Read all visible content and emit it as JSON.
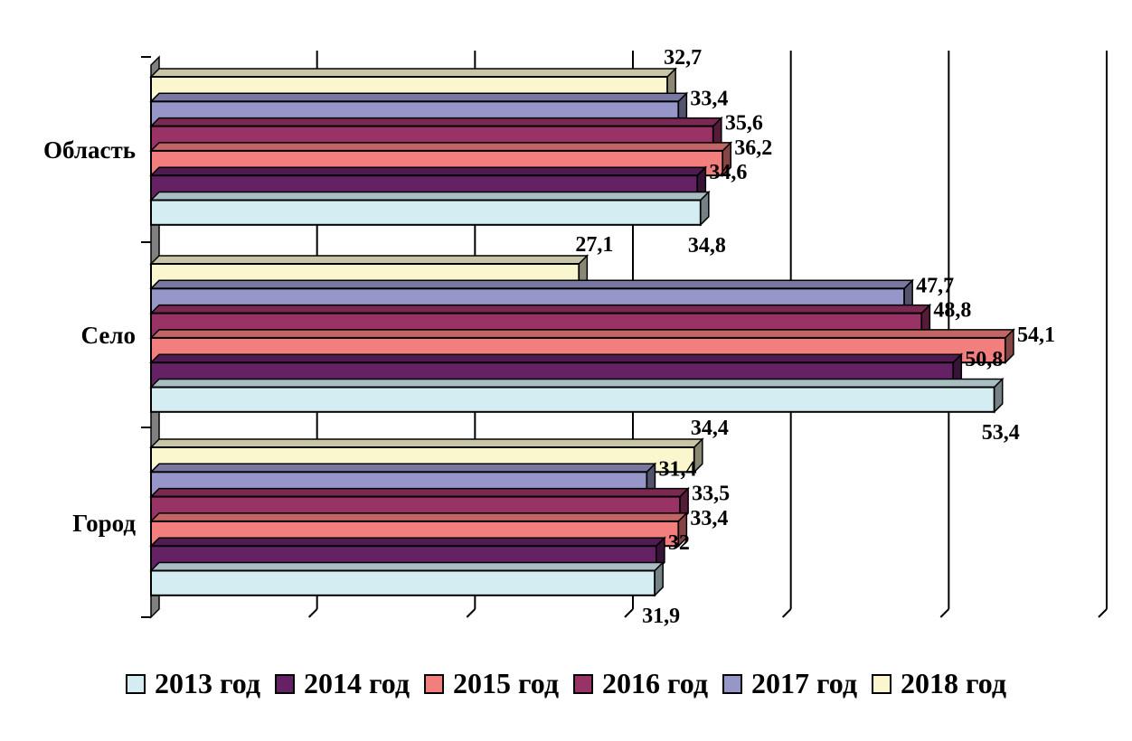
{
  "chart_data": {
    "type": "bar",
    "orientation": "horizontal",
    "style": "3d",
    "title": "",
    "xlabel": "",
    "ylabel": "",
    "xlim": [
      0,
      60
    ],
    "grid": true,
    "grid_step": 10,
    "legend_position": "bottom",
    "categories": [
      "Область",
      "Село",
      "Город"
    ],
    "series": [
      {
        "name": "2013 год",
        "color": "#D3EDF3",
        "values": [
          34.8,
          53.4,
          31.9
        ],
        "labels": [
          "34,8",
          "53,4",
          "31,9"
        ]
      },
      {
        "name": "2014 год",
        "color": "#642264",
        "values": [
          34.6,
          50.8,
          32.0
        ],
        "labels": [
          "34,6",
          "50,8",
          "32"
        ]
      },
      {
        "name": "2015 год",
        "color": "#F27E7E",
        "values": [
          36.2,
          54.1,
          33.4
        ],
        "labels": [
          "36,2",
          "54,1",
          "33,4"
        ]
      },
      {
        "name": "2016 год",
        "color": "#993366",
        "values": [
          35.6,
          48.8,
          33.5
        ],
        "labels": [
          "35,6",
          "48,8",
          "33,5"
        ]
      },
      {
        "name": "2017 год",
        "color": "#9696C8",
        "values": [
          33.4,
          47.7,
          31.4
        ],
        "labels": [
          "33,4",
          "47,7",
          "31,4"
        ]
      },
      {
        "name": "2018 год",
        "color": "#FAF7CF",
        "values": [
          32.7,
          27.1,
          34.4
        ],
        "labels": [
          "32,7",
          "27,1",
          "34,4"
        ]
      }
    ]
  }
}
